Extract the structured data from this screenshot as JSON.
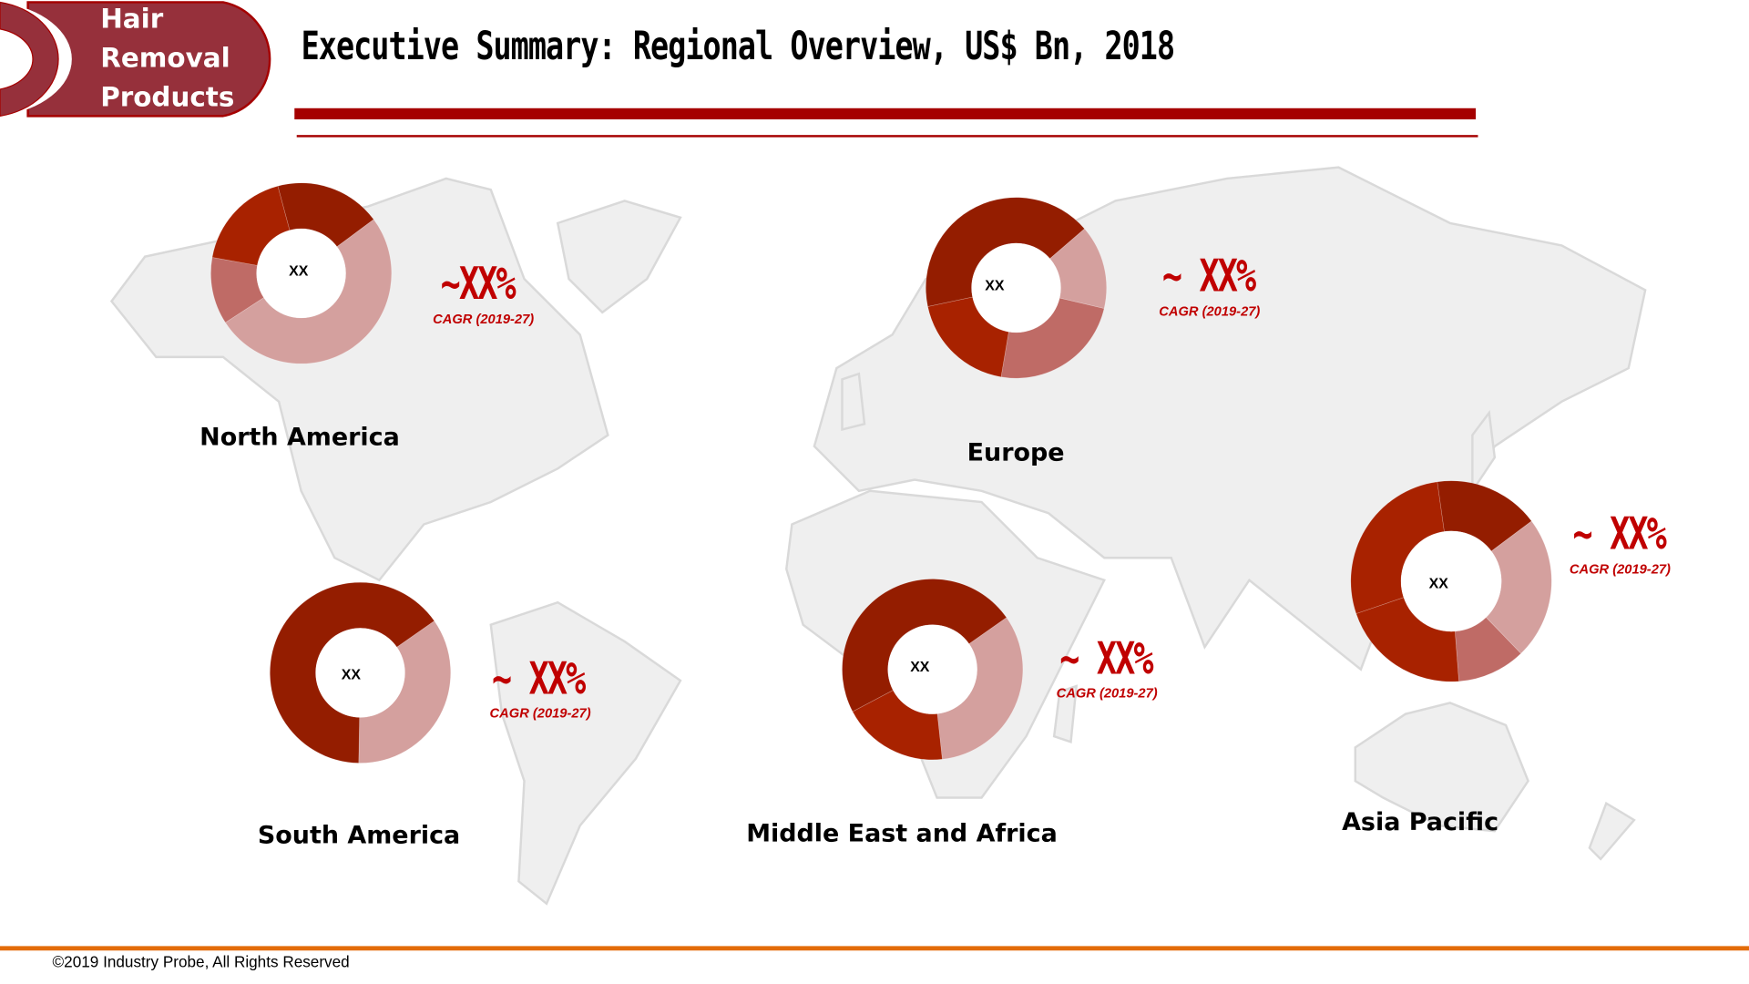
{
  "header": {
    "logo_lines": [
      "Hair",
      "Removal",
      "Products"
    ],
    "title": "Executive Summary: Regional Overview, US$ Bn, 2018"
  },
  "colors": {
    "dark": "#941d00",
    "orange": "#a82200",
    "medium": "#bf6b66",
    "light": "#d4a09e",
    "accent": "#c00000",
    "footer": "#e36c09"
  },
  "regions": [
    {
      "name": "North America",
      "center_label": "XX",
      "cagr_value": "~XX%",
      "cagr_label": "CAGR (2019-27)",
      "slices": [
        {
          "color": "dark",
          "pct": 19
        },
        {
          "color": "light",
          "pct": 51
        },
        {
          "color": "medium",
          "pct": 12
        },
        {
          "color": "orange",
          "pct": 18
        }
      ],
      "start_deg": 345
    },
    {
      "name": "Europe",
      "center_label": "XX",
      "cagr_value": "~ XX%",
      "cagr_label": "CAGR (2019-27)",
      "slices": [
        {
          "color": "dark",
          "pct": 42
        },
        {
          "color": "light",
          "pct": 15
        },
        {
          "color": "medium",
          "pct": 24
        },
        {
          "color": "orange",
          "pct": 19
        }
      ],
      "start_deg": 258
    },
    {
      "name": "Asia Pacific",
      "center_label": "XX",
      "cagr_value": "~ XX%",
      "cagr_label": "CAGR (2019-27)",
      "slices": [
        {
          "color": "dark",
          "pct": 17
        },
        {
          "color": "light",
          "pct": 23
        },
        {
          "color": "medium",
          "pct": 11
        },
        {
          "color": "orange",
          "pct": 21
        },
        {
          "color": "orange",
          "pct": 28
        }
      ],
      "start_deg": 352
    },
    {
      "name": "South America",
      "center_label": "XX",
      "cagr_value": "~ XX%",
      "cagr_label": "CAGR (2019-27)",
      "slices": [
        {
          "color": "light",
          "pct": 35
        },
        {
          "color": "dark",
          "pct": 65
        }
      ],
      "start_deg": 55
    },
    {
      "name": "Middle East and Africa",
      "center_label": "XX",
      "cagr_value": "~ XX%",
      "cagr_label": "CAGR (2019-27)",
      "slices": [
        {
          "color": "light",
          "pct": 33
        },
        {
          "color": "orange",
          "pct": 19
        },
        {
          "color": "dark",
          "pct": 48
        }
      ],
      "start_deg": 55
    }
  ],
  "footer": {
    "copyright": "©2019 Industry Probe, All Rights Reserved"
  }
}
